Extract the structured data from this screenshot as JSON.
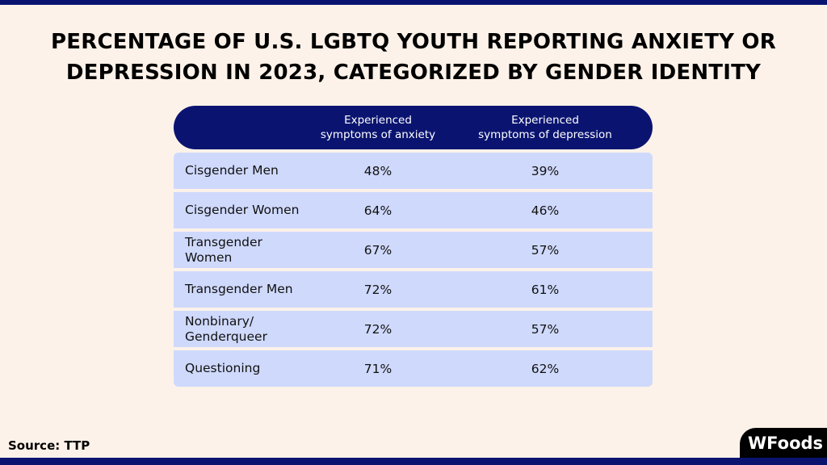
{
  "title_lines": [
    "PERCENTAGE OF U.S. LGBTQ YOUTH REPORTING ANXIETY OR",
    "DEPRESSION IN 2023, CATEGORIZED BY GENDER IDENTITY"
  ],
  "source": "Source: TTP",
  "logo_text": "WFoods",
  "colors": {
    "navy": "#0a1470",
    "row": "#cfd9fc",
    "background": "#fdf2e9"
  },
  "chart_data": {
    "type": "table",
    "title": "PERCENTAGE OF U.S. LGBTQ YOUTH REPORTING ANXIETY OR DEPRESSION IN 2023, CATEGORIZED BY GENDER IDENTITY",
    "columns": [
      "",
      "Experienced symptoms of anxiety",
      "Experienced symptoms of depression"
    ],
    "header": [
      [
        "Experienced",
        "symptoms of anxiety"
      ],
      [
        "Experienced",
        "symptoms of depression"
      ]
    ],
    "rows": [
      {
        "label": [
          "Cisgender Men"
        ],
        "anxiety": "48%",
        "depression": "39%"
      },
      {
        "label": [
          "Cisgender Women"
        ],
        "anxiety": "64%",
        "depression": "46%"
      },
      {
        "label": [
          "Transgender",
          "Women"
        ],
        "anxiety": "67%",
        "depression": "57%"
      },
      {
        "label": [
          "Transgender Men"
        ],
        "anxiety": "72%",
        "depression": "61%"
      },
      {
        "label": [
          "Nonbinary/",
          "Genderqueer"
        ],
        "anxiety": "72%",
        "depression": "57%"
      },
      {
        "label": [
          "Questioning"
        ],
        "anxiety": "71%",
        "depression": "62%"
      }
    ]
  }
}
